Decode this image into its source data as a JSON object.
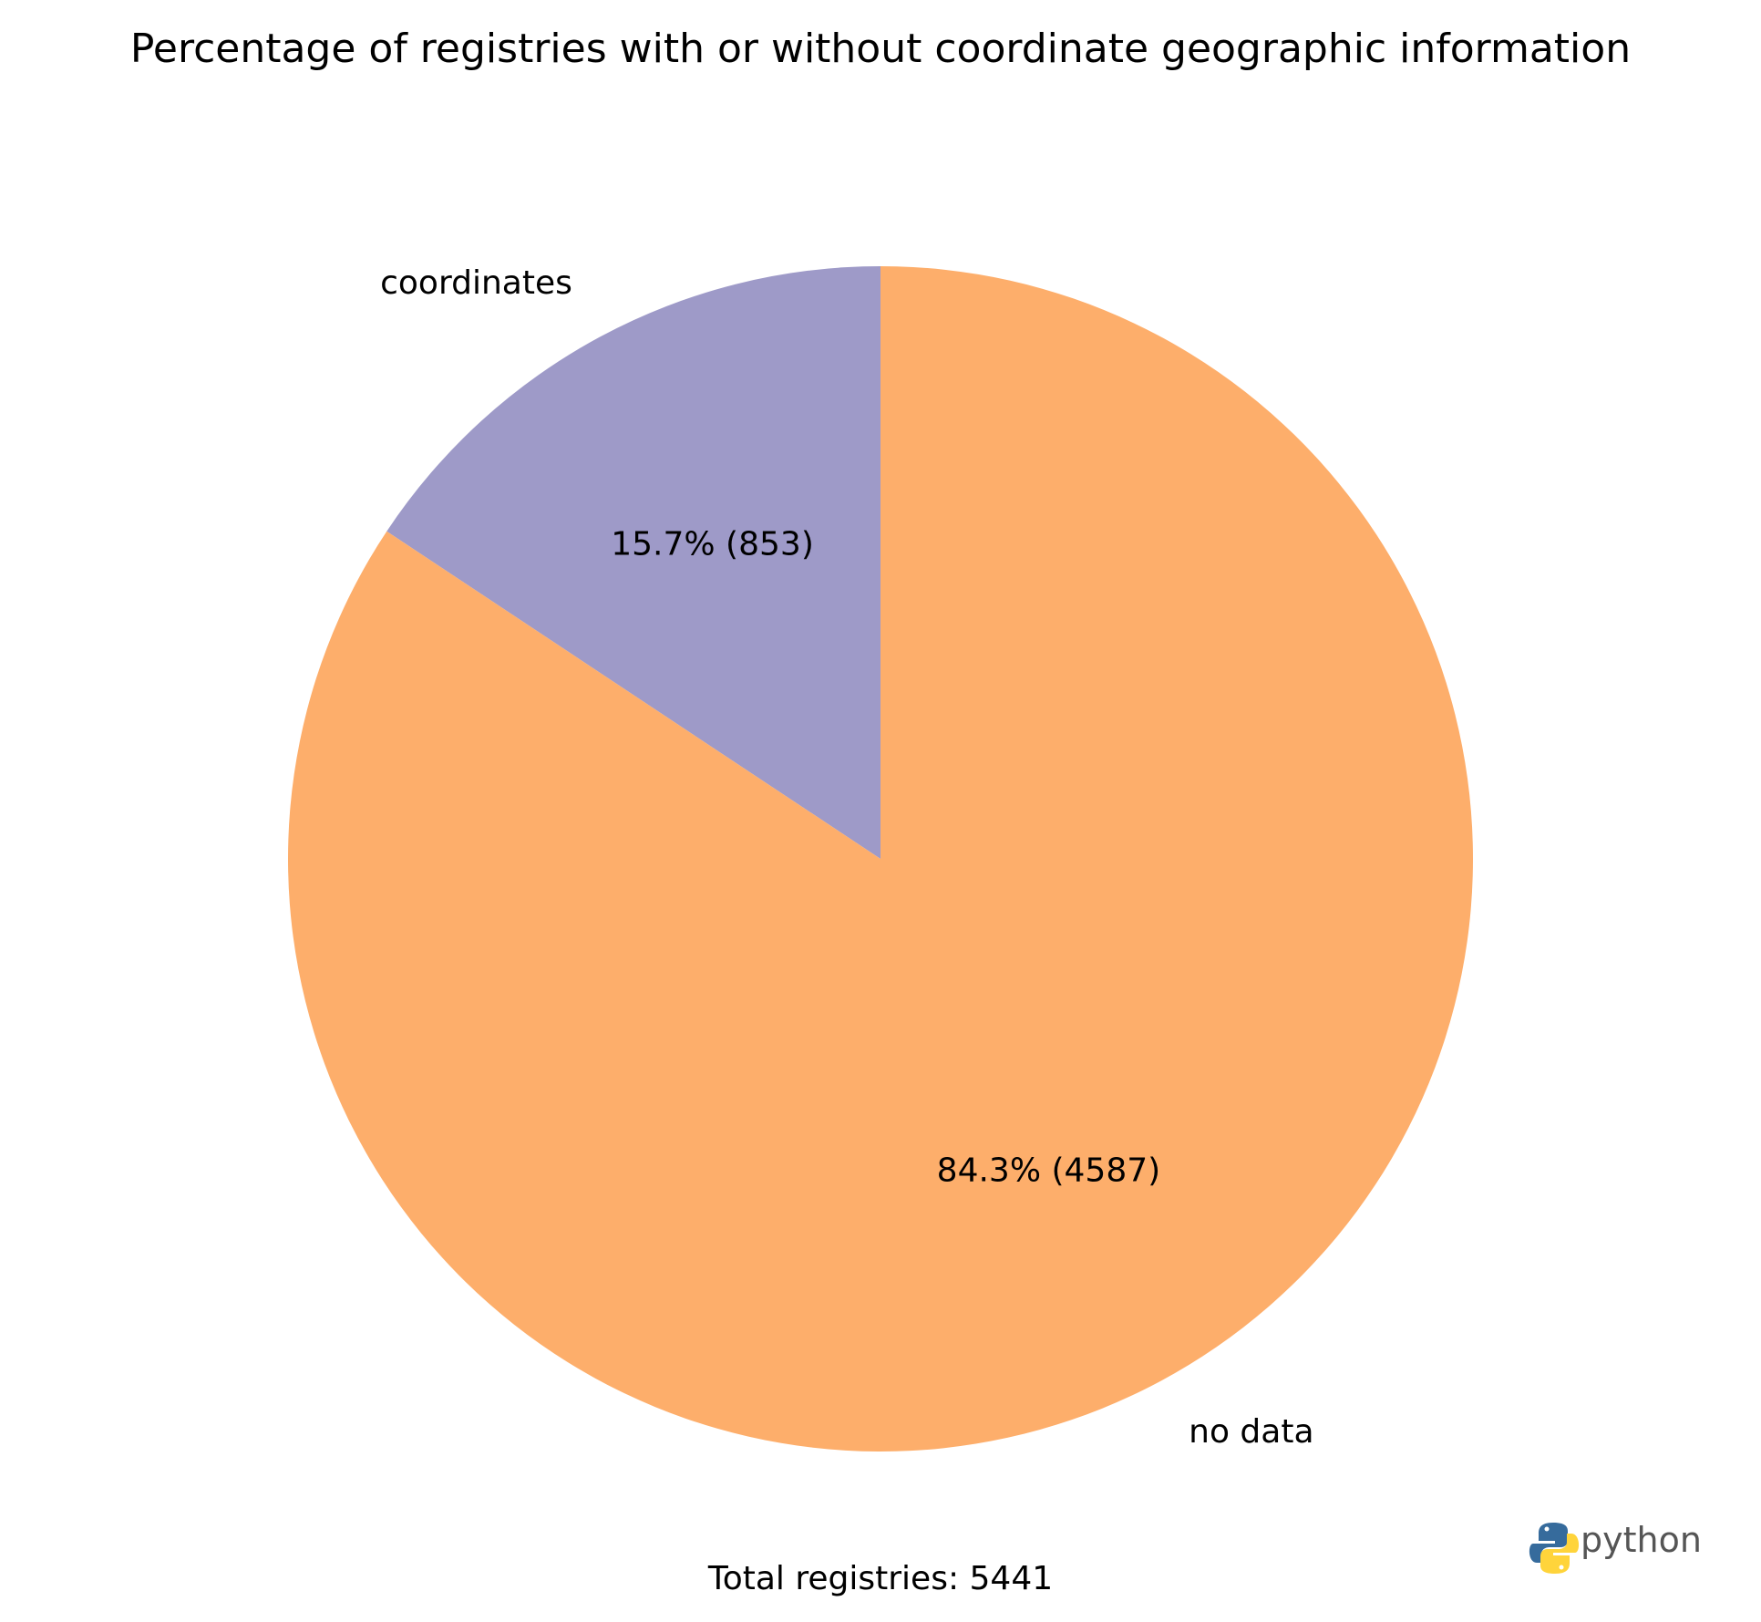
{
  "chart_data": {
    "type": "pie",
    "title": "Percentage of registries with or without coordinate geographic information",
    "slices": [
      {
        "label": "coordinates",
        "value": 853,
        "percent": 15.7,
        "text": "15.7% (853)",
        "color": "#9e9ac8"
      },
      {
        "label": "no data",
        "value": 4587,
        "percent": 84.3,
        "text": "84.3% (4587)",
        "color": "#fdae6b"
      }
    ],
    "start_angle_deg": 90,
    "direction": "counterclockwise",
    "footer": "Total registries: 5441"
  },
  "logo": {
    "text": "python",
    "blue": "#366b9c",
    "yellow": "#ffd43b"
  }
}
